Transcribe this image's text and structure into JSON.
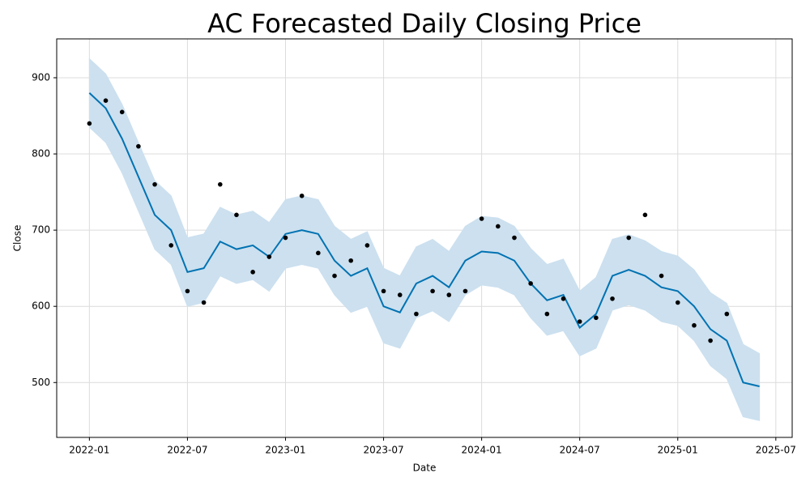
{
  "chart_data": {
    "type": "line",
    "title": "AC Forecasted Daily Closing Price",
    "x_label": "Date",
    "y_label": "Close",
    "xlim": [
      "2021-11",
      "2025-08"
    ],
    "xticks": [
      "2022-01",
      "2022-07",
      "2023-01",
      "2023-07",
      "2024-01",
      "2024-07",
      "2025-01",
      "2025-07"
    ],
    "ylim": [
      428,
      951
    ],
    "yticks": [
      500,
      600,
      700,
      800,
      900
    ],
    "grid": true,
    "forecast": {
      "color": "#0072B2",
      "band_color": "#cce0ef",
      "x": [
        "2022-01",
        "2022-02",
        "2022-03",
        "2022-04",
        "2022-05",
        "2022-06",
        "2022-07",
        "2022-08",
        "2022-09",
        "2022-10",
        "2022-11",
        "2022-12",
        "2023-01",
        "2023-02",
        "2023-03",
        "2023-04",
        "2023-05",
        "2023-06",
        "2023-07",
        "2023-08",
        "2023-09",
        "2023-10",
        "2023-11",
        "2023-12",
        "2024-01",
        "2024-02",
        "2024-03",
        "2024-04",
        "2024-05",
        "2024-06",
        "2024-07",
        "2024-08",
        "2024-09",
        "2024-10",
        "2024-11",
        "2024-12",
        "2025-01",
        "2025-02",
        "2025-03",
        "2025-04",
        "2025-05",
        "2025-06"
      ],
      "values": [
        880,
        860,
        820,
        770,
        720,
        700,
        645,
        650,
        685,
        675,
        680,
        665,
        695,
        700,
        695,
        660,
        640,
        650,
        600,
        592,
        630,
        640,
        625,
        660,
        672,
        670,
        660,
        630,
        608,
        615,
        572,
        590,
        640,
        648,
        640,
        625,
        620,
        600,
        570,
        555,
        500,
        495
      ],
      "upper": [
        925,
        905,
        865,
        815,
        765,
        745,
        690,
        695,
        730,
        720,
        725,
        710,
        740,
        745,
        740,
        705,
        688,
        698,
        650,
        640,
        678,
        688,
        672,
        705,
        718,
        716,
        705,
        676,
        655,
        662,
        620,
        638,
        688,
        694,
        686,
        672,
        666,
        648,
        618,
        604,
        550,
        538
      ],
      "lower": [
        835,
        815,
        775,
        725,
        675,
        655,
        600,
        605,
        640,
        630,
        635,
        620,
        650,
        655,
        650,
        615,
        592,
        600,
        552,
        545,
        585,
        594,
        580,
        615,
        628,
        625,
        615,
        585,
        562,
        568,
        535,
        545,
        595,
        602,
        595,
        580,
        575,
        555,
        522,
        505,
        455,
        450
      ]
    },
    "observed": {
      "color": "#000000",
      "x": [
        "2022-01",
        "2022-02",
        "2022-03",
        "2022-04",
        "2022-05",
        "2022-06",
        "2022-07",
        "2022-08",
        "2022-09",
        "2022-10",
        "2022-11",
        "2022-12",
        "2023-01",
        "2023-02",
        "2023-03",
        "2023-04",
        "2023-05",
        "2023-06",
        "2023-07",
        "2023-08",
        "2023-09",
        "2023-10",
        "2023-11",
        "2023-12",
        "2024-01",
        "2024-02",
        "2024-03",
        "2024-04",
        "2024-05",
        "2024-06",
        "2024-07",
        "2024-08",
        "2024-09",
        "2024-10",
        "2024-11",
        "2024-12",
        "2025-01",
        "2025-02",
        "2025-03",
        "2025-04"
      ],
      "values": [
        840,
        870,
        855,
        810,
        760,
        680,
        620,
        605,
        760,
        720,
        645,
        665,
        690,
        745,
        670,
        640,
        660,
        680,
        620,
        615,
        590,
        620,
        615,
        620,
        715,
        705,
        690,
        630,
        590,
        610,
        580,
        585,
        610,
        690,
        720,
        640,
        605,
        575,
        555,
        590
      ]
    }
  }
}
